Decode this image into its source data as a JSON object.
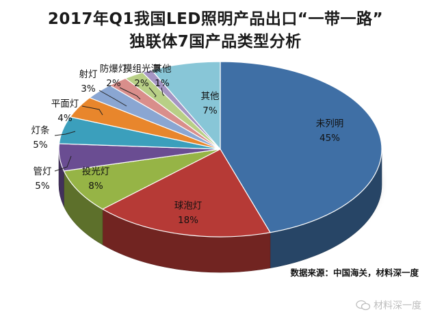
{
  "title_line1": "2017年Q1我国LED照明产品出口“一带一路”",
  "title_line2": "独联体7国产品类型分析",
  "source": "数据来源：中国海关，材料深一度",
  "watermark": "材料深一度",
  "chart_data": {
    "type": "pie",
    "title": "2017年Q1我国LED照明产品出口“一带一路”独联体7国产品类型分析",
    "unit": "%",
    "legend": "none",
    "slices": [
      {
        "name": "未列明",
        "value": 45,
        "color": "#3f6fa5",
        "label": "45%"
      },
      {
        "name": "球泡灯",
        "value": 18,
        "color": "#b63a36",
        "label": "18%"
      },
      {
        "name": "投光灯",
        "value": 8,
        "color": "#96b446",
        "label": "8%"
      },
      {
        "name": "管灯",
        "value": 5,
        "color": "#6a4d92",
        "label": "5%"
      },
      {
        "name": "灯条",
        "value": 5,
        "color": "#3b9fbc",
        "label": "5%"
      },
      {
        "name": "平面灯",
        "value": 4,
        "color": "#e8862c",
        "label": "4%"
      },
      {
        "name": "射灯",
        "value": 3,
        "color": "#8aa6d2",
        "label": "3%"
      },
      {
        "name": "防爆灯",
        "value": 2,
        "color": "#d98e8b",
        "label": "2%"
      },
      {
        "name": "模组光源",
        "value": 2,
        "color": "#b8cf86",
        "label": "2%"
      },
      {
        "name": "其他",
        "value": 1,
        "color": "#a595c3",
        "label": "1%"
      },
      {
        "name": "其他",
        "value": 7,
        "color": "#88c6d7",
        "label": "7%"
      }
    ]
  }
}
